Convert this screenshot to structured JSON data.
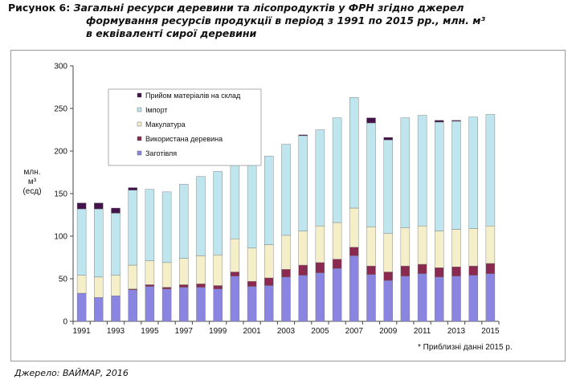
{
  "caption": {
    "prefix": "Рисунок 6:",
    "line1": "Загальні ресурси деревини та лісопродуктів у ФРН згідно джерел",
    "line2": "формування ресурсів продукції в період з 1991 по 2015 рр., млн. м³",
    "line3": "в еквіваленті сирої деревини"
  },
  "source": "Джерело: ВАЙМАР, 2016",
  "chart_data": {
    "type": "bar",
    "stacked": true,
    "ylabel_lines": [
      "млн.",
      "м³",
      "(есд)"
    ],
    "ylim": [
      0,
      300
    ],
    "yticks": [
      0,
      50,
      100,
      150,
      200,
      250,
      300
    ],
    "x": [
      1991,
      1992,
      1993,
      1994,
      1995,
      1996,
      1997,
      1998,
      1999,
      2000,
      2001,
      2002,
      2003,
      2004,
      2005,
      2006,
      2007,
      2008,
      2009,
      2010,
      2011,
      2012,
      2013,
      2014,
      2015
    ],
    "xtick_labels": [
      "1991",
      "1993",
      "1995",
      "1997",
      "1999",
      "2001",
      "2003",
      "2005",
      "2007",
      "2009",
      "2011",
      "2013",
      "2015"
    ],
    "legend_position": "top-left",
    "note": "* Приблизні данні 2015 р.",
    "series": [
      {
        "name": "Заготівля",
        "color": "#8a85e0",
        "values": [
          33,
          28,
          30,
          37,
          41,
          38,
          40,
          40,
          38,
          53,
          41,
          42,
          52,
          54,
          57,
          62,
          77,
          55,
          48,
          53,
          56,
          52,
          53,
          54,
          56
        ]
      },
      {
        "name": "Використана деревина",
        "color": "#8b2a50",
        "values": [
          0,
          0,
          0,
          1,
          2,
          2,
          3,
          4,
          4,
          5,
          6,
          9,
          9,
          12,
          12,
          11,
          10,
          10,
          10,
          12,
          11,
          11,
          11,
          11,
          12
        ]
      },
      {
        "name": "Макулатура",
        "color": "#f5efc9",
        "values": [
          21,
          24,
          24,
          28,
          28,
          29,
          31,
          33,
          36,
          39,
          39,
          39,
          40,
          40,
          43,
          43,
          46,
          46,
          45,
          45,
          45,
          43,
          44,
          44,
          44
        ]
      },
      {
        "name": "Імпорт",
        "color": "#bfe6ee",
        "values": [
          78,
          80,
          73,
          88,
          84,
          83,
          87,
          93,
          98,
          106,
          102,
          104,
          107,
          112,
          113,
          123,
          130,
          122,
          110,
          129,
          130,
          128,
          127,
          131,
          131
        ]
      },
      {
        "name": "Прийом матеріалів на склад",
        "color": "#43124a",
        "values": [
          7,
          7,
          6,
          3,
          0,
          0,
          0,
          0,
          0,
          0,
          0,
          0,
          0,
          1,
          0,
          0,
          0,
          6,
          3,
          0,
          0,
          2,
          1,
          0,
          0
        ]
      }
    ]
  }
}
